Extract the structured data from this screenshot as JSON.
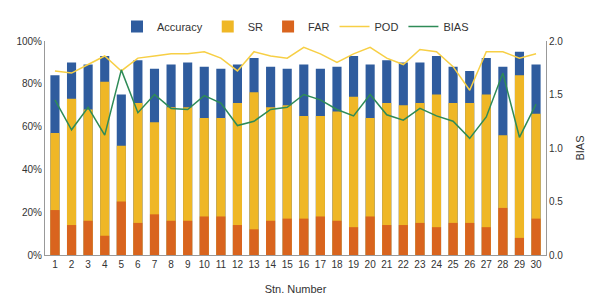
{
  "chart_data": {
    "type": "bar",
    "x_label": "Stn. Number",
    "y2_label": "BIAS",
    "categories": [
      "1",
      "2",
      "3",
      "4",
      "5",
      "6",
      "7",
      "8",
      "9",
      "10",
      "11",
      "12",
      "13",
      "14",
      "15",
      "16",
      "17",
      "18",
      "19",
      "20",
      "21",
      "22",
      "23",
      "24",
      "25",
      "26",
      "27",
      "28",
      "29",
      "30"
    ],
    "series": [
      {
        "name": "Accuracy",
        "type": "bar",
        "color": "#2f5c9e",
        "values": [
          84,
          90,
          89,
          93,
          75,
          91,
          87,
          89,
          90,
          88,
          87,
          89,
          92,
          88,
          87,
          89,
          87,
          88,
          93,
          89,
          91,
          90,
          90,
          93,
          88,
          86,
          92,
          88,
          95,
          89
        ]
      },
      {
        "name": "SR",
        "type": "bar",
        "color": "#efb726",
        "values": [
          57,
          73,
          68,
          81,
          51,
          71,
          62,
          69,
          69,
          64,
          64,
          71,
          76,
          69,
          70,
          65,
          65,
          67,
          74,
          64,
          71,
          70,
          71,
          75,
          71,
          71,
          75,
          56,
          84,
          66
        ]
      },
      {
        "name": "FAR",
        "type": "bar",
        "color": "#d9641e",
        "values": [
          21,
          14,
          16,
          9,
          25,
          15,
          19,
          16,
          16,
          18,
          18,
          14,
          12,
          16,
          17,
          17,
          18,
          16,
          13,
          18,
          14,
          14,
          15,
          13,
          15,
          15,
          13,
          22,
          8,
          17
        ]
      },
      {
        "name": "POD",
        "type": "line",
        "color": "#f7cf45",
        "values": [
          86,
          85,
          89,
          93,
          86,
          92,
          93,
          94,
          94,
          95,
          92,
          86,
          95,
          93,
          92,
          97,
          94,
          90,
          94,
          97,
          92,
          89,
          96,
          95,
          88,
          77,
          95,
          95,
          92,
          94
        ]
      },
      {
        "name": "BIAS",
        "type": "line",
        "color": "#2e8b57",
        "axis": "y2",
        "values": [
          1.45,
          1.17,
          1.38,
          1.12,
          1.73,
          1.33,
          1.5,
          1.37,
          1.36,
          1.49,
          1.42,
          1.21,
          1.25,
          1.36,
          1.38,
          1.5,
          1.45,
          1.36,
          1.3,
          1.5,
          1.31,
          1.26,
          1.37,
          1.3,
          1.25,
          1.09,
          1.29,
          1.7,
          1.1,
          1.41
        ]
      }
    ],
    "ylim": [
      0,
      100
    ],
    "yticks": [
      {
        "value": 0,
        "label": "0%"
      },
      {
        "value": 20,
        "label": "20%"
      },
      {
        "value": 40,
        "label": "40%"
      },
      {
        "value": 60,
        "label": "60%"
      },
      {
        "value": 80,
        "label": "80%"
      },
      {
        "value": 100,
        "label": "100%"
      }
    ],
    "y2lim": [
      0,
      2
    ],
    "y2ticks": [
      {
        "value": 0,
        "label": "0.0"
      },
      0.5,
      {
        "value": 1,
        "label": "1.0"
      },
      1.5,
      {
        "value": 2,
        "label": "2.0"
      }
    ],
    "stacked": false,
    "grid": false,
    "legend": "top"
  }
}
